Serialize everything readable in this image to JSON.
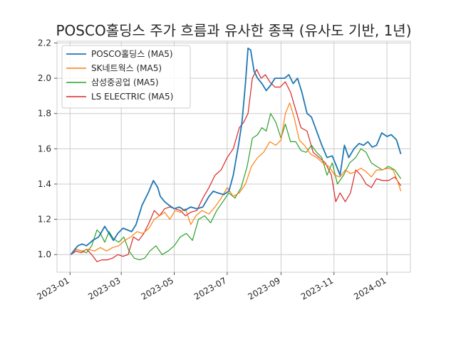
{
  "chart_data": {
    "type": "line",
    "title": "POSCO홀딩스 주가 흐름과 유사한 종목 (유사도 기반, 1년)",
    "xlabel": "",
    "ylabel": "",
    "xlim": [
      "2022-12-17",
      "2024-01-28"
    ],
    "ylim": [
      0.9,
      2.21
    ],
    "grid": true,
    "legend_position": "top-left",
    "x_ticks": [
      "2023-01",
      "2023-03",
      "2023-05",
      "2023-07",
      "2023-09",
      "2023-11",
      "2024-01"
    ],
    "y_ticks": [
      "1.0",
      "1.2",
      "1.4",
      "1.6",
      "1.8",
      "2.0",
      "2.2"
    ],
    "series": [
      {
        "name": "POSCO홀딩스 (MA5)",
        "color": "#1f77b4",
        "x": [
          "2023-01-02",
          "2023-01-05",
          "2023-01-10",
          "2023-01-15",
          "2023-01-20",
          "2023-01-27",
          "2023-02-03",
          "2023-02-10",
          "2023-02-15",
          "2023-02-20",
          "2023-02-25",
          "2023-03-03",
          "2023-03-08",
          "2023-03-13",
          "2023-03-18",
          "2023-03-25",
          "2023-04-01",
          "2023-04-07",
          "2023-04-12",
          "2023-04-15",
          "2023-04-20",
          "2023-04-25",
          "2023-05-01",
          "2023-05-07",
          "2023-05-13",
          "2023-05-20",
          "2023-05-27",
          "2023-06-03",
          "2023-06-10",
          "2023-06-15",
          "2023-06-20",
          "2023-06-27",
          "2023-07-03",
          "2023-07-08",
          "2023-07-14",
          "2023-07-18",
          "2023-07-22",
          "2023-07-25",
          "2023-07-28",
          "2023-08-01",
          "2023-08-05",
          "2023-08-10",
          "2023-08-15",
          "2023-08-20",
          "2023-08-25",
          "2023-08-30",
          "2023-09-05",
          "2023-09-10",
          "2023-09-15",
          "2023-09-20",
          "2023-09-25",
          "2023-10-01",
          "2023-10-06",
          "2023-10-12",
          "2023-10-18",
          "2023-10-24",
          "2023-10-30",
          "2023-11-04",
          "2023-11-08",
          "2023-11-13",
          "2023-11-18",
          "2023-11-24",
          "2023-11-30",
          "2023-12-05",
          "2023-12-10",
          "2023-12-15",
          "2023-12-20",
          "2023-12-26",
          "2024-01-01",
          "2024-01-06",
          "2024-01-12",
          "2024-01-17"
        ],
        "values": [
          1.0,
          1.02,
          1.05,
          1.06,
          1.05,
          1.08,
          1.1,
          1.16,
          1.12,
          1.08,
          1.12,
          1.15,
          1.14,
          1.13,
          1.17,
          1.28,
          1.35,
          1.42,
          1.38,
          1.33,
          1.3,
          1.28,
          1.26,
          1.27,
          1.25,
          1.27,
          1.26,
          1.27,
          1.33,
          1.36,
          1.35,
          1.34,
          1.36,
          1.45,
          1.62,
          1.75,
          1.97,
          2.17,
          2.16,
          2.04,
          2.0,
          1.97,
          1.93,
          1.96,
          2.0,
          2.0,
          2.0,
          2.02,
          1.97,
          2.0,
          1.92,
          1.8,
          1.78,
          1.7,
          1.62,
          1.55,
          1.56,
          1.5,
          1.45,
          1.62,
          1.55,
          1.6,
          1.63,
          1.62,
          1.64,
          1.61,
          1.62,
          1.69,
          1.67,
          1.68,
          1.65,
          1.57
        ]
      },
      {
        "name": "SK네트웍스 (MA5)",
        "color": "#ff7f0e",
        "x": [
          "2023-01-02",
          "2023-01-08",
          "2023-01-15",
          "2023-01-22",
          "2023-01-29",
          "2023-02-05",
          "2023-02-12",
          "2023-02-19",
          "2023-02-26",
          "2023-03-05",
          "2023-03-12",
          "2023-03-19",
          "2023-03-26",
          "2023-04-02",
          "2023-04-08",
          "2023-04-14",
          "2023-04-20",
          "2023-04-26",
          "2023-05-02",
          "2023-05-08",
          "2023-05-14",
          "2023-05-20",
          "2023-05-26",
          "2023-06-02",
          "2023-06-10",
          "2023-06-17",
          "2023-06-24",
          "2023-07-01",
          "2023-07-08",
          "2023-07-15",
          "2023-07-22",
          "2023-07-29",
          "2023-08-05",
          "2023-08-12",
          "2023-08-19",
          "2023-08-26",
          "2023-09-01",
          "2023-09-06",
          "2023-09-11",
          "2023-09-16",
          "2023-09-22",
          "2023-09-28",
          "2023-10-05",
          "2023-10-12",
          "2023-10-19",
          "2023-10-26",
          "2023-11-02",
          "2023-11-08",
          "2023-11-14",
          "2023-11-20",
          "2023-11-26",
          "2023-12-02",
          "2023-12-08",
          "2023-12-14",
          "2023-12-20",
          "2023-12-26",
          "2024-01-02",
          "2024-01-08",
          "2024-01-13",
          "2024-01-17"
        ],
        "values": [
          1.0,
          1.03,
          1.02,
          1.03,
          1.02,
          1.04,
          1.02,
          1.04,
          1.05,
          1.08,
          1.1,
          1.13,
          1.12,
          1.15,
          1.2,
          1.22,
          1.24,
          1.2,
          1.25,
          1.24,
          1.26,
          1.17,
          1.22,
          1.25,
          1.23,
          1.27,
          1.32,
          1.38,
          1.33,
          1.35,
          1.4,
          1.5,
          1.55,
          1.58,
          1.64,
          1.62,
          1.65,
          1.8,
          1.86,
          1.78,
          1.65,
          1.62,
          1.57,
          1.55,
          1.52,
          1.5,
          1.45,
          1.44,
          1.48,
          1.46,
          1.47,
          1.49,
          1.47,
          1.44,
          1.48,
          1.48,
          1.49,
          1.48,
          1.42,
          1.36
        ]
      },
      {
        "name": "삼성중공업 (MA5)",
        "color": "#2ca02c",
        "x": [
          "2023-01-02",
          "2023-01-08",
          "2023-01-14",
          "2023-01-20",
          "2023-01-26",
          "2023-02-01",
          "2023-02-05",
          "2023-02-10",
          "2023-02-15",
          "2023-02-20",
          "2023-02-26",
          "2023-03-04",
          "2023-03-10",
          "2023-03-16",
          "2023-03-22",
          "2023-03-28",
          "2023-04-03",
          "2023-04-10",
          "2023-04-17",
          "2023-04-24",
          "2023-05-01",
          "2023-05-08",
          "2023-05-15",
          "2023-05-22",
          "2023-05-29",
          "2023-06-05",
          "2023-06-12",
          "2023-06-19",
          "2023-06-26",
          "2023-07-03",
          "2023-07-10",
          "2023-07-17",
          "2023-07-24",
          "2023-07-30",
          "2023-08-05",
          "2023-08-10",
          "2023-08-15",
          "2023-08-20",
          "2023-08-26",
          "2023-09-01",
          "2023-09-06",
          "2023-09-12",
          "2023-09-18",
          "2023-09-24",
          "2023-09-30",
          "2023-10-06",
          "2023-10-12",
          "2023-10-18",
          "2023-10-24",
          "2023-10-30",
          "2023-11-05",
          "2023-11-12",
          "2023-11-19",
          "2023-11-26",
          "2023-12-02",
          "2023-12-08",
          "2023-12-14",
          "2023-12-20",
          "2023-12-27",
          "2024-01-03",
          "2024-01-10",
          "2024-01-17"
        ],
        "values": [
          1.0,
          1.03,
          1.02,
          1.01,
          1.05,
          1.14,
          1.12,
          1.07,
          1.13,
          1.09,
          1.07,
          1.1,
          1.02,
          0.98,
          0.97,
          0.98,
          1.02,
          1.05,
          1.0,
          1.02,
          1.05,
          1.1,
          1.12,
          1.08,
          1.2,
          1.22,
          1.18,
          1.25,
          1.3,
          1.35,
          1.32,
          1.38,
          1.5,
          1.66,
          1.68,
          1.72,
          1.7,
          1.8,
          1.75,
          1.66,
          1.74,
          1.64,
          1.64,
          1.59,
          1.58,
          1.62,
          1.58,
          1.55,
          1.45,
          1.52,
          1.4,
          1.45,
          1.52,
          1.55,
          1.6,
          1.58,
          1.52,
          1.5,
          1.48,
          1.5,
          1.48,
          1.43
        ]
      },
      {
        "name": "LS ELECTRIC (MA5)",
        "color": "#d62728",
        "x": [
          "2023-01-02",
          "2023-01-08",
          "2023-01-14",
          "2023-01-20",
          "2023-01-26",
          "2023-02-01",
          "2023-02-07",
          "2023-02-13",
          "2023-02-19",
          "2023-02-25",
          "2023-03-03",
          "2023-03-09",
          "2023-03-15",
          "2023-03-21",
          "2023-03-27",
          "2023-04-02",
          "2023-04-08",
          "2023-04-14",
          "2023-04-20",
          "2023-04-26",
          "2023-05-02",
          "2023-05-08",
          "2023-05-14",
          "2023-05-20",
          "2023-05-27",
          "2023-06-03",
          "2023-06-10",
          "2023-06-17",
          "2023-06-24",
          "2023-07-01",
          "2023-07-08",
          "2023-07-15",
          "2023-07-20",
          "2023-07-25",
          "2023-07-30",
          "2023-08-04",
          "2023-08-09",
          "2023-08-14",
          "2023-08-19",
          "2023-08-25",
          "2023-08-31",
          "2023-09-06",
          "2023-09-12",
          "2023-09-18",
          "2023-09-24",
          "2023-10-01",
          "2023-10-08",
          "2023-10-15",
          "2023-10-22",
          "2023-10-29",
          "2023-11-03",
          "2023-11-08",
          "2023-11-14",
          "2023-11-20",
          "2023-11-26",
          "2023-12-02",
          "2023-12-08",
          "2023-12-14",
          "2023-12-20",
          "2023-12-27",
          "2024-01-03",
          "2024-01-10",
          "2024-01-17"
        ],
        "values": [
          1.0,
          1.02,
          1.01,
          1.03,
          1.0,
          0.96,
          0.97,
          0.97,
          0.98,
          1.0,
          0.99,
          1.0,
          1.1,
          1.08,
          1.12,
          1.18,
          1.25,
          1.22,
          1.26,
          1.27,
          1.26,
          1.25,
          1.22,
          1.24,
          1.25,
          1.32,
          1.38,
          1.45,
          1.48,
          1.55,
          1.6,
          1.72,
          1.75,
          1.8,
          2.0,
          2.05,
          2.0,
          2.02,
          1.98,
          1.95,
          1.95,
          1.98,
          1.92,
          1.82,
          1.72,
          1.7,
          1.58,
          1.55,
          1.52,
          1.45,
          1.3,
          1.35,
          1.3,
          1.35,
          1.48,
          1.45,
          1.4,
          1.38,
          1.43,
          1.42,
          1.42,
          1.44,
          1.39
        ]
      }
    ]
  }
}
